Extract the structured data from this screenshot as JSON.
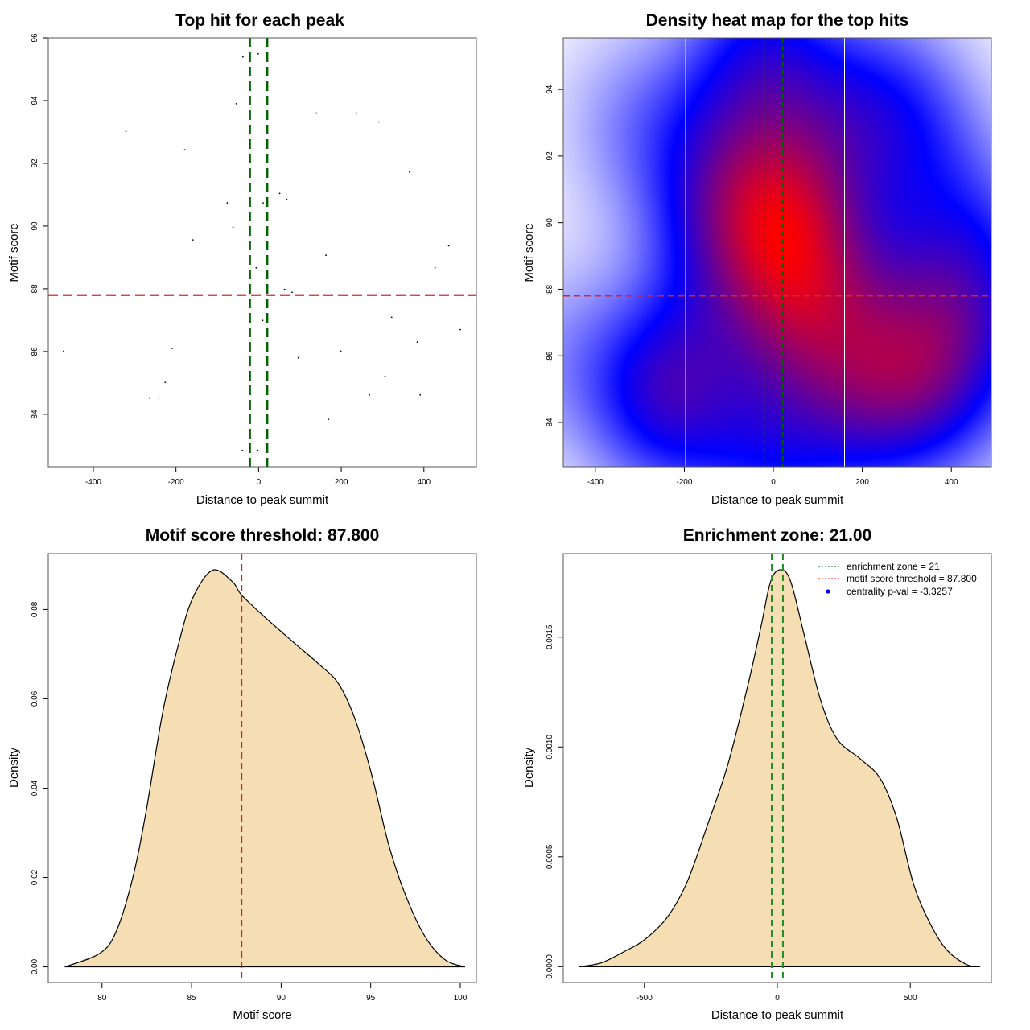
{
  "chart_data": [
    {
      "id": "scatter",
      "type": "scatter",
      "title": "Top hit for each peak",
      "xlabel": "Distance to peak summit",
      "ylabel": "Motif score",
      "xlim": [
        -509,
        527
      ],
      "ylim": [
        82.33,
        96
      ],
      "xticks": [
        -400,
        -200,
        0,
        200,
        400
      ],
      "xtick_labels": [
        "-400",
        "-200",
        "0",
        "200",
        "400"
      ],
      "yticks": [
        84,
        86,
        88,
        90,
        92,
        94,
        96
      ],
      "ytick_labels": [
        "84",
        "86",
        "88",
        "90",
        "92",
        "94",
        "96"
      ],
      "grid": false,
      "points": [
        {
          "x": -38,
          "y": 95.39
        },
        {
          "x": -1,
          "y": 95.49
        },
        {
          "x": -54,
          "y": 93.9
        },
        {
          "x": 140,
          "y": 93.6
        },
        {
          "x": 237,
          "y": 93.6
        },
        {
          "x": 291,
          "y": 93.32
        },
        {
          "x": -321,
          "y": 93.02
        },
        {
          "x": -179,
          "y": 92.43
        },
        {
          "x": 365,
          "y": 91.73
        },
        {
          "x": 51,
          "y": 91.04
        },
        {
          "x": 68,
          "y": 90.85
        },
        {
          "x": -76,
          "y": 90.74
        },
        {
          "x": 11,
          "y": 90.74
        },
        {
          "x": -62,
          "y": 89.96
        },
        {
          "x": -159,
          "y": 89.56
        },
        {
          "x": 460,
          "y": 89.37
        },
        {
          "x": 163,
          "y": 89.07
        },
        {
          "x": -6,
          "y": 88.67
        },
        {
          "x": 427,
          "y": 88.67
        },
        {
          "x": 63,
          "y": 87.98
        },
        {
          "x": 81,
          "y": 87.89
        },
        {
          "x": 322,
          "y": 87.09
        },
        {
          "x": 10,
          "y": 86.99
        },
        {
          "x": 488,
          "y": 86.7
        },
        {
          "x": 384,
          "y": 86.3
        },
        {
          "x": -472,
          "y": 86.01
        },
        {
          "x": -209,
          "y": 86.1
        },
        {
          "x": 199,
          "y": 86.01
        },
        {
          "x": 96,
          "y": 85.8
        },
        {
          "x": 306,
          "y": 85.21
        },
        {
          "x": -226,
          "y": 85.02
        },
        {
          "x": -265,
          "y": 84.52
        },
        {
          "x": -242,
          "y": 84.52
        },
        {
          "x": 268,
          "y": 84.62
        },
        {
          "x": 391,
          "y": 84.62
        },
        {
          "x": 169,
          "y": 83.84
        },
        {
          "x": -39,
          "y": 82.85
        },
        {
          "x": -2,
          "y": 82.85
        }
      ],
      "vlines": [
        {
          "x": -21,
          "color": "#006400",
          "style": "dashed"
        },
        {
          "x": 21,
          "color": "#006400",
          "style": "dashed"
        }
      ],
      "hlines": [
        {
          "y": 87.8,
          "color": "#d62728",
          "style": "dashed"
        }
      ]
    },
    {
      "id": "heatmap",
      "type": "heatmap",
      "title": "Density heat map for the top hits",
      "xlabel": "Distance to peak summit",
      "ylabel": "Motif score",
      "xlim": [
        -472,
        490
      ],
      "ylim": [
        82.67,
        95.55
      ],
      "xticks": [
        -400,
        -200,
        0,
        200,
        400
      ],
      "xtick_labels": [
        "-400",
        "-200",
        "0",
        "200",
        "400"
      ],
      "yticks": [
        84,
        86,
        88,
        90,
        92,
        94
      ],
      "ytick_labels": [
        "84",
        "86",
        "88",
        "90",
        "92",
        "94"
      ],
      "colormap": [
        "#ffffff",
        "#0000ff",
        "#ff0000"
      ],
      "density_source": "scatter.points",
      "bandwidth": {
        "x": 120,
        "y": 2.0
      },
      "vlines_white": [
        -197,
        160
      ],
      "vlines": [
        {
          "x": -21,
          "color": "#006400",
          "style": "dashed"
        },
        {
          "x": 21,
          "color": "#006400",
          "style": "dashed"
        }
      ],
      "hlines": [
        {
          "y": 87.8,
          "color": "#d62728",
          "style": "dashed"
        }
      ]
    },
    {
      "id": "score-density",
      "type": "area",
      "title": "Motif score threshold: 87.800",
      "xlabel": "Motif score",
      "ylabel": "Density",
      "xlim": [
        77.0,
        100.9
      ],
      "ylim": [
        -0.0035,
        0.0925
      ],
      "xticks": [
        80,
        85,
        90,
        95,
        100
      ],
      "xtick_labels": [
        "80",
        "85",
        "90",
        "95",
        "100"
      ],
      "yticks": [
        0,
        0.02,
        0.04,
        0.06,
        0.08
      ],
      "ytick_labels": [
        "0.00",
        "0.02",
        "0.04",
        "0.06",
        "0.08"
      ],
      "fill": "#f5deb3",
      "x": [
        77.92,
        79.87,
        80.8,
        81.72,
        82.47,
        83.39,
        84.32,
        85.06,
        86.17,
        87.28,
        87.8,
        89.14,
        90.62,
        92.1,
        93.2,
        94.14,
        95.07,
        96.0,
        96.92,
        98.03,
        99.15,
        100.26
      ],
      "y": [
        0.0,
        0.003,
        0.008,
        0.02,
        0.035,
        0.057,
        0.073,
        0.0825,
        0.0888,
        0.0862,
        0.0832,
        0.0781,
        0.0729,
        0.0678,
        0.0634,
        0.0553,
        0.0428,
        0.0274,
        0.0163,
        0.0068,
        0.0016,
        0.0
      ],
      "vlines": [
        {
          "x": 87.8,
          "color": "#e31a1c",
          "style": "dashed"
        }
      ]
    },
    {
      "id": "distance-density",
      "type": "area",
      "title": "Enrichment zone: 21.00",
      "xlabel": "Distance to peak summit",
      "ylabel": "Density",
      "xlim": [
        -805,
        805
      ],
      "ylim": [
        -7.2e-05,
        0.00188
      ],
      "xticks": [
        -500,
        0,
        500
      ],
      "xtick_labels": [
        "-500",
        "0",
        "500"
      ],
      "yticks": [
        0,
        0.0005,
        0.001,
        0.0015
      ],
      "ytick_labels": [
        "0.0000",
        "0.0005",
        "0.0010",
        "0.0015"
      ],
      "fill": "#f5deb3",
      "x": [
        -745,
        -661,
        -574,
        -499,
        -412,
        -337,
        -262,
        -187,
        -112,
        -62,
        -25,
        12.5,
        50,
        100,
        162,
        225,
        312,
        387,
        449,
        512,
        574,
        636,
        711,
        763
      ],
      "y": [
        0.0,
        1.8e-05,
        7e-05,
        0.000123,
        0.000228,
        0.000392,
        0.000647,
        0.000916,
        0.001275,
        0.001545,
        0.001754,
        0.001807,
        0.001754,
        0.001515,
        0.001216,
        0.001036,
        0.000946,
        0.000856,
        0.000677,
        0.000377,
        0.000198,
        7.8e-05,
        1e-05,
        0.0
      ],
      "vlines": [
        {
          "x": -21,
          "color": "#228b22",
          "style": "dashed"
        },
        {
          "x": 21,
          "color": "#228b22",
          "style": "dashed"
        }
      ],
      "legend": {
        "position": "top-right",
        "entries": [
          {
            "label": "enrichment zone = 21",
            "color": "#228b22",
            "marker": "dotted-line"
          },
          {
            "label": "motif score threshold = 87.800",
            "color": "#ff4d4d",
            "marker": "dotted-line"
          },
          {
            "label": "centrality p-val = -3.3257",
            "color": "#0000ff",
            "marker": "dot"
          }
        ]
      }
    }
  ]
}
